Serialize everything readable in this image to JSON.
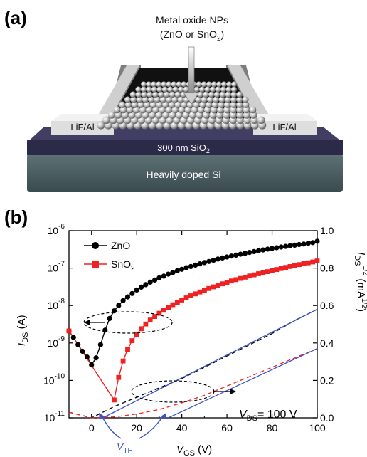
{
  "panel_a": {
    "label": "(a)",
    "np_line1": "Metal oxide NPs",
    "np_line2_pre": "(ZnO or SnO",
    "np_line2_sub": "2",
    "np_line2_post": ")",
    "electrode_left": "LiF/Al",
    "electrode_right": "LiF/Al",
    "oxide_pre": "300 nm SiO",
    "oxide_sub": "2",
    "substrate": "Heavily doped Si",
    "colors": {
      "substrate": "#4d5e62",
      "oxide": "#2b2a48",
      "electrode": "#bdbdbd",
      "np": "#b8b8b8"
    }
  },
  "panel_b": {
    "label": "(b)",
    "left_axis_label_main": "I",
    "left_axis_label_sub": "DS",
    "left_axis_label_unit": " (A)",
    "right_axis_label_main": "I",
    "right_axis_label_sub": "DS",
    "right_axis_label_sup": "1/2",
    "right_axis_label_unit": " (mA",
    "right_axis_label_unit_sup": "1/2",
    "right_axis_label_close": ")",
    "x_axis_label_main": "V",
    "x_axis_label_sub": "GS",
    "x_axis_label_unit": " (V)",
    "vth_main": "V",
    "vth_sub": "TH",
    "vds_main": "V",
    "vds_sub": "DS",
    "vds_value": "= 100 V",
    "legend_zno": "ZnO",
    "legend_sno2_pre": "SnO",
    "legend_sno2_sub": "2"
  },
  "chart_data": {
    "type": "scatter",
    "x_range": [
      -10,
      100
    ],
    "x_ticks": [
      0,
      20,
      40,
      60,
      80,
      100
    ],
    "x_tick_labels": [
      "0",
      "20",
      "40",
      "60",
      "80",
      "100"
    ],
    "y_left_scale": "log",
    "y_left_range": [
      1e-11,
      1e-06
    ],
    "y_left_tick_exponents": [
      -11,
      -10,
      -9,
      -8,
      -7,
      -6
    ],
    "y_right_range": [
      0,
      1.0
    ],
    "y_right_ticks": [
      0.0,
      0.2,
      0.4,
      0.6,
      0.8,
      1.0
    ],
    "y_right_tick_labels": [
      "0.0",
      "0.2",
      "0.4",
      "0.6",
      "0.8",
      "1.0"
    ],
    "legend_position": "top-left",
    "series": [
      {
        "name": "ZnO",
        "color": "#000000",
        "marker": "circle",
        "axis": "left",
        "x": [
          -10,
          -8,
          -6,
          -4,
          -2,
          0,
          2,
          4,
          6,
          8,
          10,
          12,
          14,
          16,
          18,
          20,
          22,
          24,
          26,
          28,
          30,
          32,
          34,
          36,
          38,
          40,
          42,
          44,
          46,
          48,
          50,
          52,
          54,
          56,
          58,
          60,
          62,
          64,
          66,
          68,
          70,
          72,
          74,
          76,
          78,
          80,
          82,
          84,
          86,
          88,
          90,
          92,
          94,
          96,
          98,
          100
        ],
        "y": [
          2.1e-09,
          1.4e-09,
          9e-10,
          6e-10,
          4.2e-10,
          2.6e-10,
          4e-10,
          9e-10,
          2.2e-09,
          4.5e-09,
          7.2e-09,
          1e-08,
          1.35e-08,
          1.7e-08,
          2.1e-08,
          2.6e-08,
          3.1e-08,
          3.6e-08,
          4.2e-08,
          4.8e-08,
          5.5e-08,
          6.1e-08,
          6.9e-08,
          7.6e-08,
          8.5e-08,
          9.3e-08,
          1.02e-07,
          1.1e-07,
          1.2e-07,
          1.3e-07,
          1.4e-07,
          1.5e-07,
          1.62e-07,
          1.74e-07,
          1.86e-07,
          1.98e-07,
          2.1e-07,
          2.22e-07,
          2.35e-07,
          2.48e-07,
          2.62e-07,
          2.76e-07,
          2.9e-07,
          3.05e-07,
          3.2e-07,
          3.35e-07,
          3.5e-07,
          3.65e-07,
          3.8e-07,
          3.95e-07,
          4.1e-07,
          4.25e-07,
          4.4e-07,
          4.6e-07,
          4.8e-07,
          5.2e-07
        ]
      },
      {
        "name": "SnO2",
        "color": "#ee2222",
        "marker": "square",
        "axis": "left",
        "x": [
          -10,
          10,
          12,
          14,
          16,
          18,
          20,
          22,
          24,
          26,
          28,
          30,
          32,
          34,
          36,
          38,
          40,
          42,
          44,
          46,
          48,
          50,
          52,
          54,
          56,
          58,
          60,
          62,
          64,
          66,
          68,
          70,
          72,
          74,
          76,
          78,
          80,
          82,
          84,
          86,
          88,
          90,
          92,
          94,
          96,
          98,
          100
        ],
        "y": [
          2.1e-09,
          3e-11,
          1.2e-10,
          3.3e-10,
          6.8e-10,
          1.15e-09,
          1.7e-09,
          2.4e-09,
          3.2e-09,
          4.1e-09,
          5.1e-09,
          6.2e-09,
          7.5e-09,
          8.9e-09,
          1.05e-08,
          1.22e-08,
          1.4e-08,
          1.6e-08,
          1.82e-08,
          2.05e-08,
          2.3e-08,
          2.57e-08,
          2.85e-08,
          3.15e-08,
          3.47e-08,
          3.8e-08,
          4.15e-08,
          4.52e-08,
          4.9e-08,
          5.3e-08,
          5.72e-08,
          6.15e-08,
          6.6e-08,
          7.07e-08,
          7.55e-08,
          8.05e-08,
          8.6e-08,
          9.15e-08,
          9.75e-08,
          1.04e-07,
          1.1e-07,
          1.17e-07,
          1.24e-07,
          1.31e-07,
          1.38e-07,
          1.46e-07,
          1.55e-07
        ]
      },
      {
        "name": "ZnO sqrt (dashed)",
        "color": "#000000",
        "line": "dashed",
        "axis": "right",
        "x": [
          -10,
          0,
          10,
          20,
          30,
          40,
          50,
          60,
          70,
          80,
          90,
          100
        ],
        "y": [
          0.03,
          0.0,
          0.06,
          0.11,
          0.16,
          0.21,
          0.27,
          0.33,
          0.39,
          0.45,
          0.52,
          0.58
        ]
      },
      {
        "name": "SnO2 sqrt (dashed)",
        "color": "#ee2222",
        "line": "dashed",
        "axis": "right",
        "x": [
          -10,
          0,
          10,
          20,
          30,
          40,
          50,
          60,
          70,
          80,
          90,
          100
        ],
        "y": [
          0.03,
          0.0,
          0.005,
          0.02,
          0.045,
          0.08,
          0.12,
          0.17,
          0.22,
          0.27,
          0.32,
          0.37
        ]
      },
      {
        "name": "ZnO linear fit",
        "color": "#3b53c9",
        "line": "solid",
        "axis": "right",
        "x": [
          5,
          100
        ],
        "y": [
          0.0,
          0.58
        ]
      },
      {
        "name": "SnO2 linear fit",
        "color": "#3b53c9",
        "line": "solid",
        "axis": "right",
        "x": [
          34,
          100
        ],
        "y": [
          0.0,
          0.37
        ]
      }
    ]
  }
}
